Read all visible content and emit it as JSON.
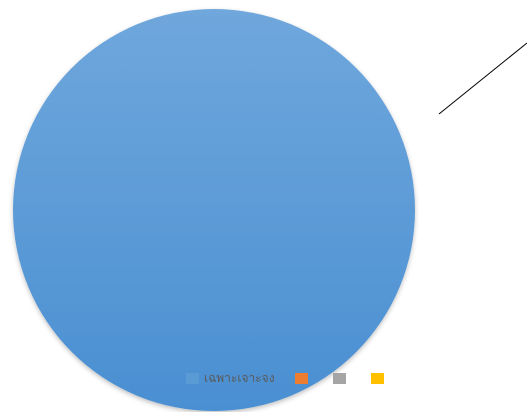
{
  "chart_data": {
    "type": "pie",
    "slices": [
      {
        "label": "เฉพาะเจาะจง",
        "value": 100,
        "color": "#5b9bd5"
      },
      {
        "label": "",
        "value": 0,
        "color": "#ed7d31"
      },
      {
        "label": "",
        "value": 0,
        "color": "#a5a5a5"
      },
      {
        "label": "",
        "value": 0,
        "color": "#ffc000"
      }
    ],
    "title": "",
    "legend_placement": "bottom-overlay",
    "gradient_colors": [
      "#6fa7dc",
      "#4a8fd2"
    ]
  }
}
